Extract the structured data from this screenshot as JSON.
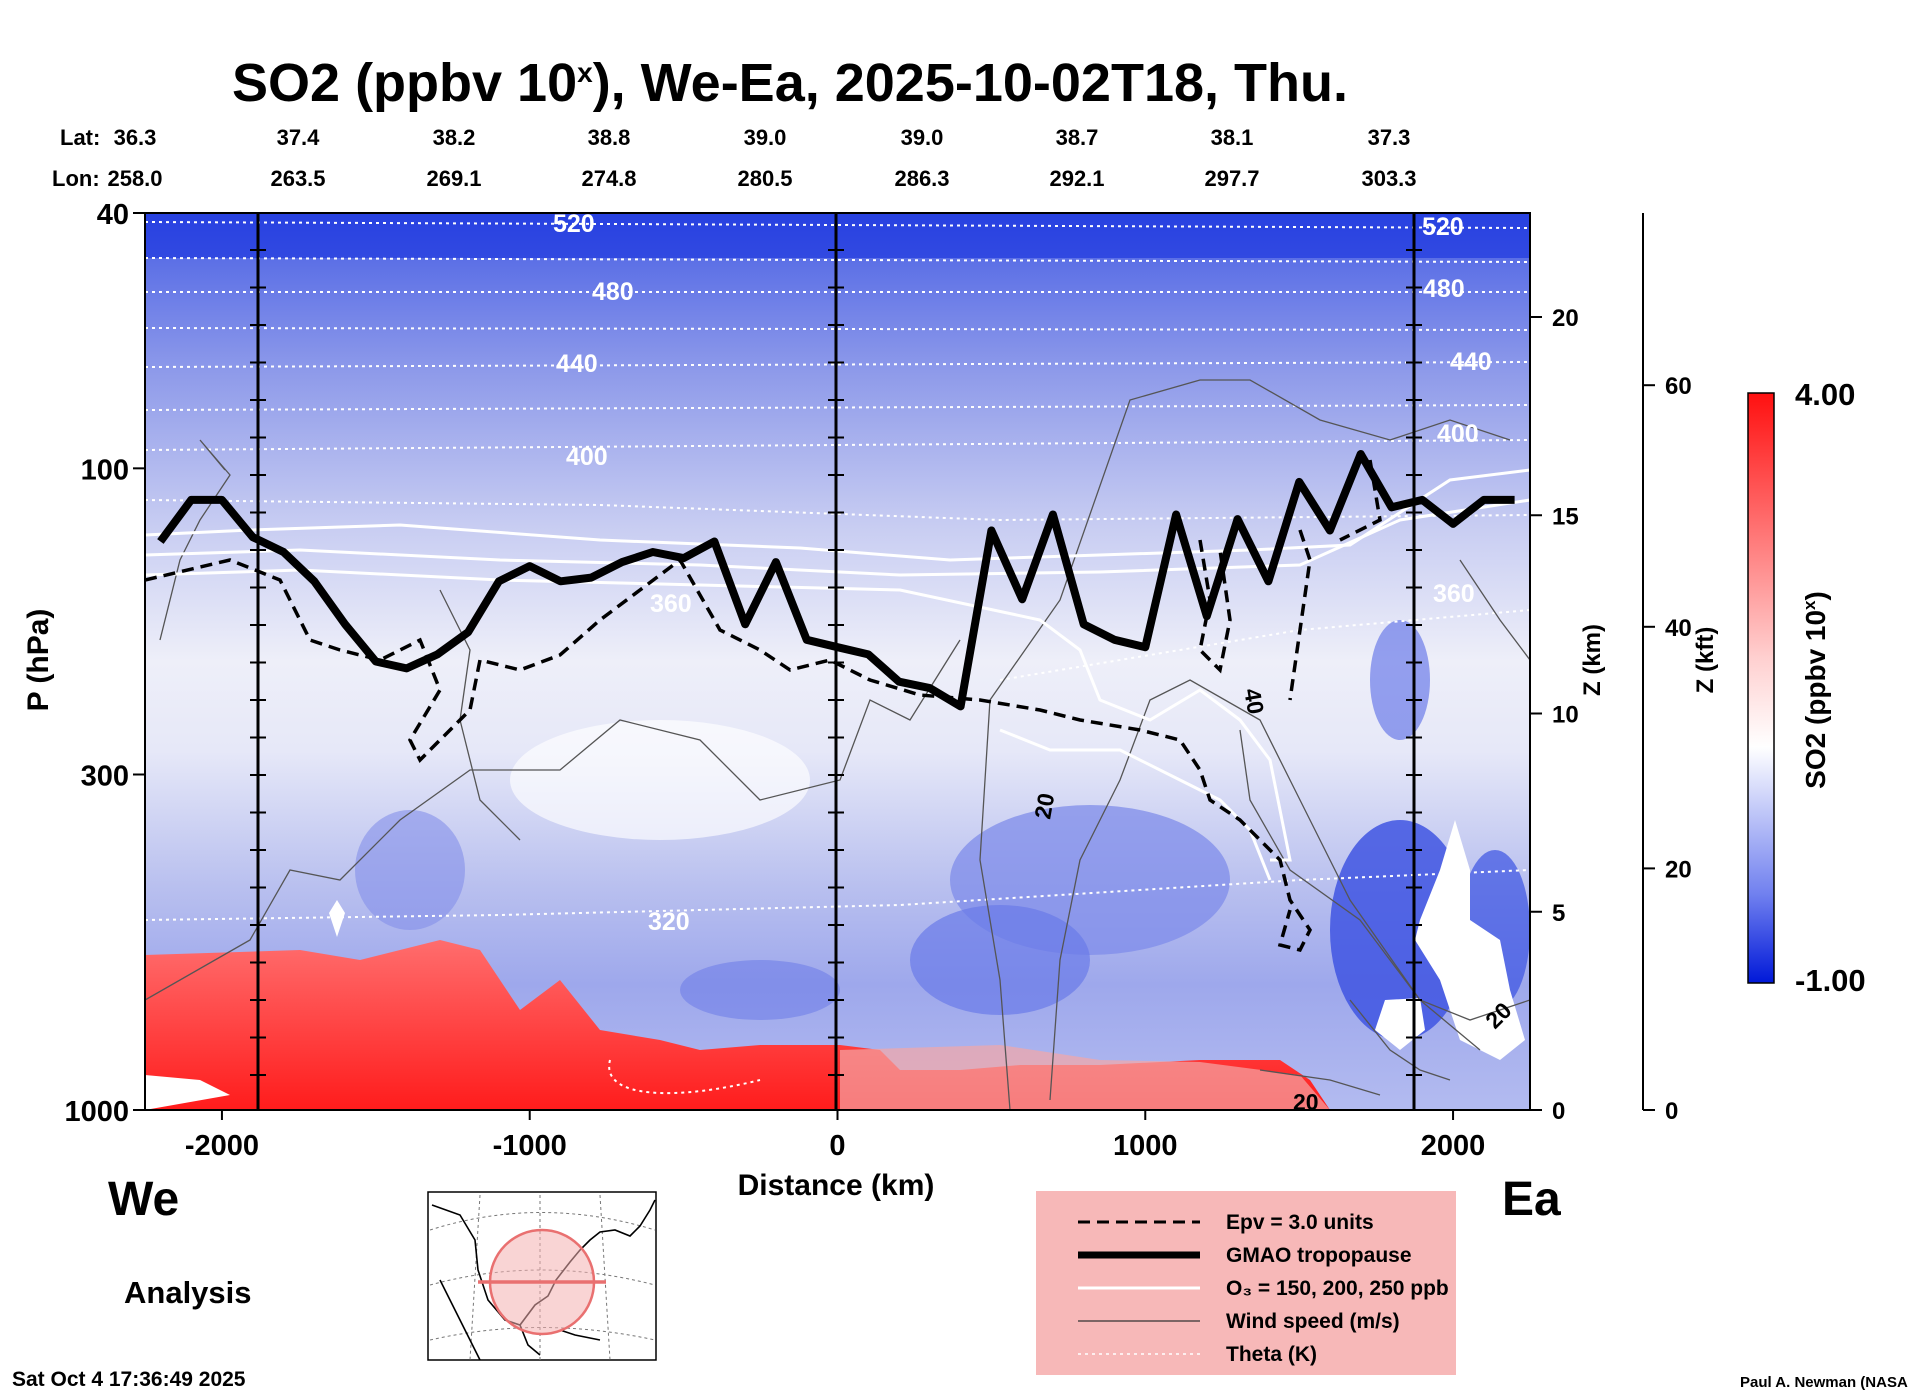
{
  "header": {
    "title_main": "SO2 (ppbv 10",
    "title_sup": "x",
    "title_rest": "), We-Ea, 2025-10-02T18, Thu.",
    "lat_label": "Lat:",
    "lon_label": "Lon:",
    "lats": [
      "36.3",
      "37.4",
      "38.2",
      "38.8",
      "39.0",
      "39.0",
      "38.7",
      "38.1",
      "37.3"
    ],
    "lons": [
      "258.0",
      "263.5",
      "269.1",
      "274.8",
      "280.5",
      "286.3",
      "292.1",
      "297.7",
      "303.3"
    ]
  },
  "side_labels": {
    "west": "We",
    "east": "Ea"
  },
  "analysis_label": "Analysis",
  "timestamp": "Sat Oct  4 17:36:49 2025",
  "credit": "Paul A. Newman (NASA",
  "chart_data": {
    "type": "heatmap",
    "title": "SO2 (ppbv 10^x), We-Ea, 2025-10-02T18, Thu.",
    "xlabel": "Distance (km)",
    "ylabel": "P (hPa)",
    "xlim": [
      -2250,
      2250
    ],
    "ylim": [
      1000,
      40
    ],
    "x_ticks": [
      -2000,
      -1000,
      0,
      1000,
      2000
    ],
    "x_tick_labels": [
      "-2000",
      "-1000",
      "0",
      "1000",
      "2000"
    ],
    "y_ticks": [
      1000,
      300,
      100,
      40
    ],
    "y_tick_labels": [
      "1000",
      "300",
      "100",
      "40"
    ],
    "z_km_ticks": [
      0,
      5,
      10,
      15,
      20
    ],
    "z_km_labels": [
      "0",
      "5",
      "10",
      "15",
      "20"
    ],
    "z_km_title": "Z (km)",
    "z_kft_ticks": [
      0,
      20,
      40,
      60
    ],
    "z_kft_labels": [
      "0",
      "20",
      "40",
      "60"
    ],
    "z_kft_title": "Z (kft)",
    "colorbar": {
      "title_main": "SO2 (ppbv 10",
      "title_sup": "x",
      "title_end": ")",
      "min": -1.0,
      "max": 4.0,
      "min_label": "-1.00",
      "max_label": "4.00",
      "colors": [
        "#0022dd",
        "#ffffff",
        "#ff1010"
      ]
    },
    "theta_labels": [
      "520",
      "480",
      "440",
      "400",
      "360",
      "320",
      "520",
      "480",
      "440",
      "400",
      "360"
    ],
    "wind_labels": [
      "40",
      "20",
      "20",
      "20"
    ],
    "tropopause_pressure_hPa": {
      "x": [
        -2200,
        -2100,
        -2000,
        -1900,
        -1800,
        -1700,
        -1600,
        -1500,
        -1400,
        -1300,
        -1200,
        -1100,
        -1000,
        -900,
        -800,
        -700,
        -600,
        -500,
        -400,
        -300,
        -200,
        -100,
        0,
        100,
        200,
        300,
        400,
        500,
        600,
        700,
        800,
        900,
        1000,
        1100,
        1200,
        1300,
        1400,
        1500,
        1600,
        1700,
        1800,
        1900,
        2000,
        2100,
        2200
      ],
      "p": [
        130,
        112,
        112,
        128,
        135,
        150,
        175,
        200,
        205,
        195,
        180,
        150,
        142,
        150,
        148,
        140,
        135,
        138,
        130,
        175,
        140,
        185,
        190,
        195,
        215,
        220,
        235,
        125,
        160,
        118,
        175,
        185,
        190,
        118,
        170,
        120,
        150,
        105,
        125,
        95,
        115,
        112,
        122,
        112,
        112
      ]
    },
    "legend": [
      {
        "label": "Epv = 3.0 units",
        "style": "dashed"
      },
      {
        "label": "GMAO tropopause",
        "style": "thick"
      },
      {
        "label": "O₃ = 150, 200, 250 ppb",
        "style": "white"
      },
      {
        "label": "Wind speed (m/s)",
        "style": "thin"
      },
      {
        "label": "Theta (K)",
        "style": "dotted"
      }
    ]
  }
}
